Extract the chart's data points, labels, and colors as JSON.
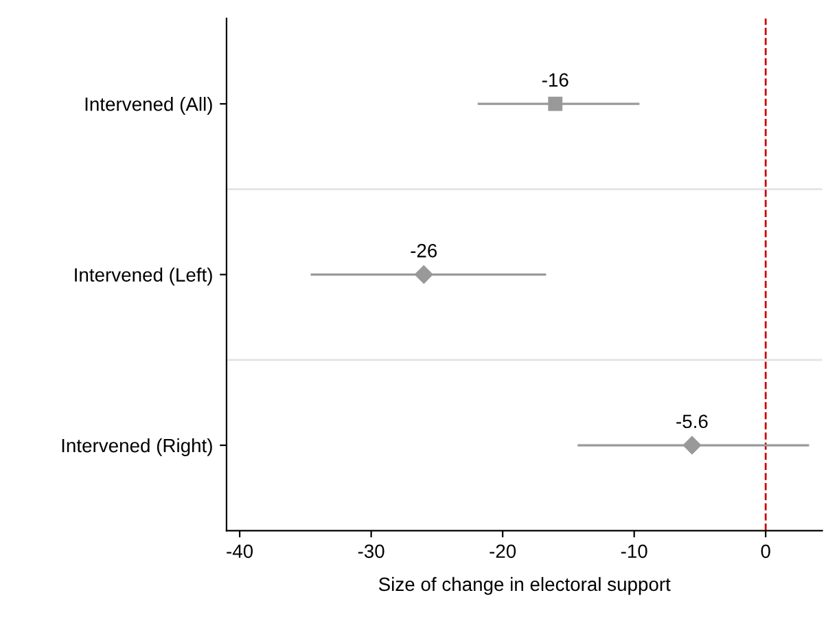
{
  "chart_data": {
    "type": "scatter",
    "orientation": "horizontal",
    "xlabel": "Size of change in electoral support",
    "categories": [
      "Intervened (All)",
      "Intervened (Left)",
      "Intervened (Right)"
    ],
    "series": [
      {
        "color": "#999999",
        "marker": "square",
        "values": [
          -16,
          null,
          null
        ],
        "errors": [
          [
            -21.9,
            -9.6
          ],
          null,
          null
        ]
      },
      {
        "color": "#999999",
        "marker": "diamond",
        "values": [
          null,
          -26,
          -5.6
        ],
        "errors": [
          null,
          [
            -34.6,
            -16.7
          ],
          [
            -14.3,
            3.3
          ]
        ]
      }
    ],
    "data_labels": true,
    "xlim": [
      -41,
      4.3
    ],
    "xticks": [
      -40,
      -30,
      -20,
      -10,
      0
    ],
    "ref_lines": [
      {
        "axis": "x",
        "value": 0,
        "color": "#cc0000",
        "line_style": "dashed"
      }
    ],
    "grid": false
  }
}
